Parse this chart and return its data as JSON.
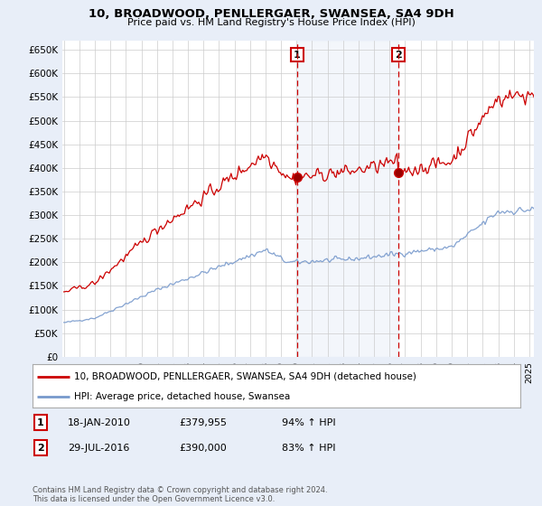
{
  "title": "10, BROADWOOD, PENLLERGAER, SWANSEA, SA4 9DH",
  "subtitle": "Price paid vs. HM Land Registry's House Price Index (HPI)",
  "legend_line1": "10, BROADWOOD, PENLLERGAER, SWANSEA, SA4 9DH (detached house)",
  "legend_line2": "HPI: Average price, detached house, Swansea",
  "annotation1_label": "1",
  "annotation1_date": "18-JAN-2010",
  "annotation1_price": "£379,955",
  "annotation1_hpi": "94% ↑ HPI",
  "annotation1_year": 2010.04,
  "annotation1_value": 379955,
  "annotation2_label": "2",
  "annotation2_date": "29-JUL-2016",
  "annotation2_price": "£390,000",
  "annotation2_hpi": "83% ↑ HPI",
  "annotation2_year": 2016.56,
  "annotation2_value": 390000,
  "footer": "Contains HM Land Registry data © Crown copyright and database right 2024.\nThis data is licensed under the Open Government Licence v3.0.",
  "ylim": [
    0,
    670000
  ],
  "xlim_start": 1994.9,
  "xlim_end": 2025.3,
  "background_color": "#e8eef8",
  "plot_bg_color": "#ffffff",
  "red_color": "#cc0000",
  "blue_color": "#7799cc",
  "shade_color": "#dde8f5",
  "annotation_box_color": "#cc0000",
  "grid_color": "#cccccc"
}
